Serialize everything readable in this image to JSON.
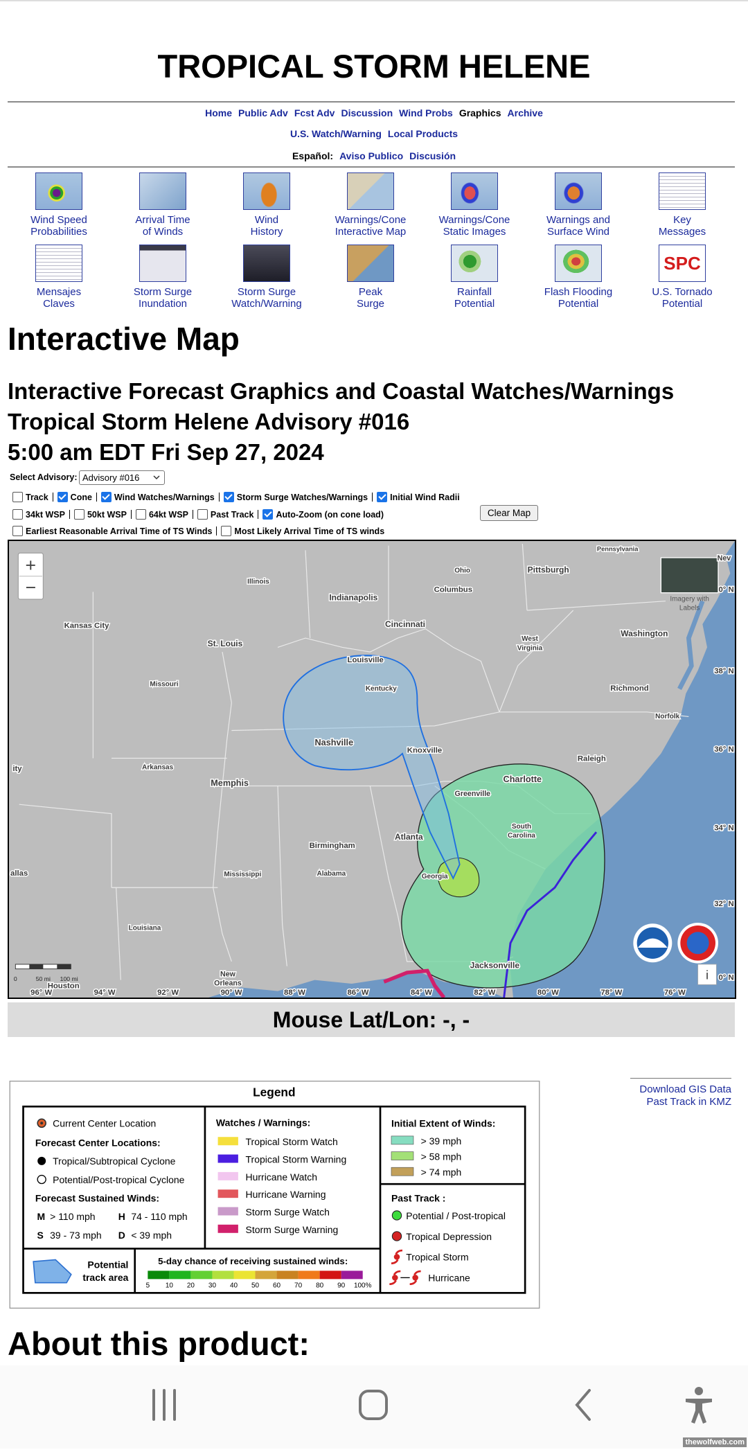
{
  "header": {
    "title": "TROPICAL STORM HELENE"
  },
  "nav": {
    "primary": [
      "Home",
      "Public Adv",
      "Fcst Adv",
      "Discussion",
      "Wind Probs",
      "Graphics",
      "Archive"
    ],
    "secondary": [
      "U.S. Watch/Warning",
      "Local Products"
    ],
    "spanish_label": "Español:",
    "spanish": [
      "Aviso Publico",
      "Discusión"
    ]
  },
  "graphics": [
    {
      "lines": [
        "Wind Speed",
        "Probabilities"
      ]
    },
    {
      "lines": [
        "Arrival Time",
        "of Winds"
      ]
    },
    {
      "lines": [
        "Wind",
        "History"
      ]
    },
    {
      "lines": [
        "Warnings/Cone",
        "Interactive Map"
      ]
    },
    {
      "lines": [
        "Warnings/Cone",
        "Static Images"
      ]
    },
    {
      "lines": [
        "Warnings and",
        "Surface Wind"
      ]
    },
    {
      "lines": [
        "Key",
        "Messages"
      ]
    },
    {
      "lines": [
        "Mensajes",
        "Claves"
      ]
    },
    {
      "lines": [
        "Storm Surge",
        "Inundation"
      ]
    },
    {
      "lines": [
        "Storm Surge",
        "Watch/Warning"
      ]
    },
    {
      "lines": [
        "Peak",
        "Surge"
      ]
    },
    {
      "lines": [
        "Rainfall",
        "Potential"
      ]
    },
    {
      "lines": [
        "Flash Flooding",
        "Potential"
      ]
    },
    {
      "lines": [
        "U.S. Tornado",
        "Potential"
      ],
      "icon_text": "SPC"
    }
  ],
  "page": {
    "heading": "Interactive Map",
    "subheading": [
      "Interactive Forecast Graphics and Coastal Watches/Warnings",
      "Tropical Storm Helene Advisory #016",
      "5:00 am EDT Fri Sep 27, 2024"
    ]
  },
  "controls": {
    "select_label": "Select Advisory:",
    "select_value": "Advisory #016",
    "button": "Clear Map",
    "rows": [
      [
        {
          "label": "Track",
          "checked": false
        },
        {
          "label": "Cone",
          "checked": true
        },
        {
          "label": "Wind Watches/Warnings",
          "checked": true
        },
        {
          "label": "Storm Surge Watches/Warnings",
          "checked": true
        },
        {
          "label": "Initial Wind Radii",
          "checked": true
        }
      ],
      [
        {
          "label": "34kt WSP",
          "checked": false
        },
        {
          "label": "50kt WSP",
          "checked": false
        },
        {
          "label": "64kt WSP",
          "checked": false
        },
        {
          "label": "Past Track",
          "checked": false
        },
        {
          "label": "Auto-Zoom (on cone load)",
          "checked": true
        }
      ],
      [
        {
          "label": "Earliest Reasonable Arrival Time of TS Winds",
          "checked": false
        },
        {
          "label": "Most Likely Arrival Time of TS winds",
          "checked": false
        }
      ]
    ]
  },
  "map": {
    "labels": [
      "Pennsylvania",
      "Nev",
      "Illinois",
      "Ohio",
      "Pittsburgh",
      "Columbus",
      "Indianapolis",
      "Kansas City",
      "Cincinnati",
      "St. Louis",
      "West",
      "Virginia",
      "Washington",
      "Louisville",
      "Missouri",
      "Kentucky",
      "Richmond",
      "Norfolk",
      "Nashville",
      "Knoxville",
      "Raleigh",
      "ity",
      "Arkansas",
      "Memphis",
      "Charlotte",
      "Greenville",
      "South",
      "Carolina",
      "Atlanta",
      "Birmingham",
      "Alabama",
      "Mississippi",
      "Georgia",
      "allas",
      "Louisiana",
      "Jacksonville",
      "New",
      "Orleans",
      "Houston"
    ],
    "lat_labels": [
      "0° N",
      "38° N",
      "36° N",
      "34° N",
      "32° N",
      "0° N"
    ],
    "lon_labels": [
      "96° W",
      "94° W",
      "92° W",
      "90° W",
      "88° W",
      "86° W",
      "84° W",
      "82° W",
      "80° W",
      "78° W",
      "76° W"
    ],
    "scale_labels": [
      "0",
      "50 mi",
      "100 mi"
    ],
    "zoom_in": "+",
    "zoom_out": "−",
    "imagery_label": [
      "Imagery with",
      "Labels"
    ],
    "info": "i"
  },
  "mouse": "Mouse Lat/Lon: -, -",
  "legend": {
    "title": "Legend",
    "center": {
      "current": "Current Center Location",
      "forecast_heading": "Forecast Center Locations:",
      "tropical": "Tropical/Subtropical Cyclone",
      "potential": "Potential/Post-tropical Cyclone",
      "winds_heading": "Forecast Sustained Winds:",
      "winds": [
        {
          "code": "M",
          "text": "> 110 mph"
        },
        {
          "code": "H",
          "text": "74 - 110 mph"
        },
        {
          "code": "S",
          "text": "39 - 73 mph"
        },
        {
          "code": "D",
          "text": "< 39 mph"
        }
      ]
    },
    "watches": {
      "heading": "Watches / Warnings:",
      "items": [
        {
          "label": "Tropical Storm Watch",
          "color": "#f5df3c"
        },
        {
          "label": "Tropical Storm Warning",
          "color": "#4b1ee0"
        },
        {
          "label": "Hurricane Watch",
          "color": "#f2c6ef"
        },
        {
          "label": "Hurricane Warning",
          "color": "#e2575c"
        },
        {
          "label": "Storm Surge Watch",
          "color": "#c99ac9"
        },
        {
          "label": "Storm Surge Warning",
          "color": "#d1206b"
        }
      ]
    },
    "extent": {
      "heading": "Initial Extent of Winds:",
      "items": [
        {
          "label": "> 39 mph",
          "color": "#86ddc0"
        },
        {
          "label": "> 58 mph",
          "color": "#a3e077"
        },
        {
          "label": "> 74 mph",
          "color": "#c2a05a"
        }
      ]
    },
    "past_track": {
      "heading": "Past Track :",
      "items": [
        {
          "label": "Potential / Post-tropical",
          "color": "#3ddb3d"
        },
        {
          "label": "Tropical Depression",
          "color": "#d42222"
        },
        {
          "label": "Tropical Storm",
          "color": "#d42222"
        },
        {
          "label": "Hurricane",
          "color": "#d42222"
        }
      ]
    },
    "track_area": [
      "Potential",
      "track area"
    ],
    "chance": {
      "heading": "5-day chance of receiving sustained winds:",
      "ticks": [
        "5",
        "10",
        "20",
        "30",
        "40",
        "50",
        "60",
        "70",
        "80",
        "90",
        "100%"
      ],
      "colors": [
        "#0a8a0a",
        "#1fb51f",
        "#62d032",
        "#b2e03e",
        "#ebe433",
        "#d4a53a",
        "#c98220",
        "#f07a1a",
        "#d31414",
        "#9a1a9a"
      ]
    }
  },
  "downloads": [
    "Download GIS Data",
    "Past Track in KMZ"
  ],
  "about": "About this product:",
  "watermark": "thewolfweb.com"
}
